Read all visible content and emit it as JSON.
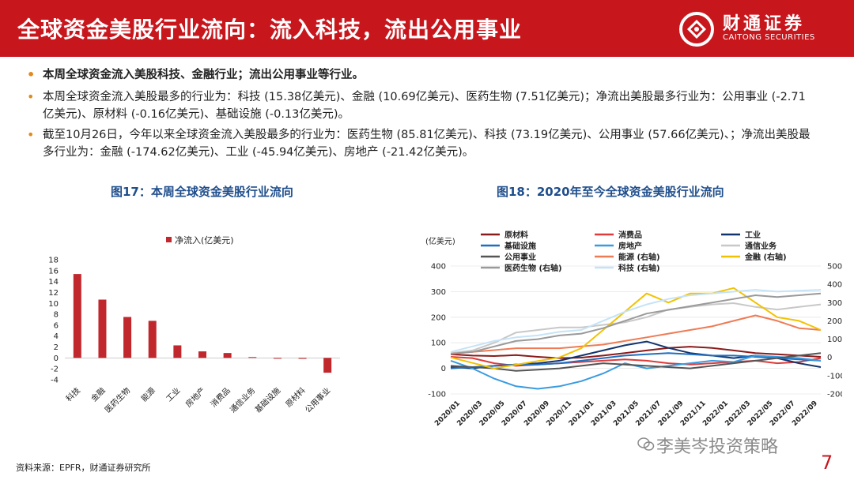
{
  "header": {
    "title": "全球资金美股行业流向：流入科技，流出公用事业",
    "logo_cn": "财通证券",
    "logo_en": "CAITONG SECURITIES"
  },
  "bullets": [
    "本周全球资金流入美股科技、金融行业；流出公用事业等行业。",
    "本周全球资金流入美股最多的行业为：科技 (15.38亿美元)、金融 (10.69亿美元)、医药生物 (7.51亿美元)；净流出美股最多行业为：公用事业 (-2.71亿美元)、原材料 (-0.16亿美元)、基础设施 (-0.13亿美元)。",
    "截至10月26日，今年以来全球资金流入美股最多的行业为：医药生物 (85.81亿美元)、科技 (73.19亿美元)、公用事业 (57.66亿美元)、；净流出美股最多行业为：金融 (-174.62亿美元)、工业 (-45.94亿美元)、房地产 (-21.42亿美元)。"
  ],
  "figures": {
    "fig17_title": "图17：本周全球资金美股行业流向",
    "fig18_title": "图18：2020年至今全球资金美股行业流向"
  },
  "chart_data": [
    {
      "type": "bar",
      "title": "图17：本周全球资金美股行业流向",
      "legend": "净流入(亿美元)",
      "categories": [
        "科技",
        "金融",
        "医药生物",
        "能源",
        "工业",
        "房地产",
        "消费品",
        "通信业务",
        "基础设施",
        "原材料",
        "公用事业"
      ],
      "values": [
        15.38,
        10.69,
        7.51,
        6.8,
        2.3,
        1.2,
        0.9,
        0.15,
        -0.13,
        -0.16,
        -2.71
      ],
      "ylim": [
        -4,
        18
      ],
      "yticks": [
        -4,
        -2,
        0,
        2,
        4,
        6,
        8,
        10,
        12,
        14,
        16,
        18
      ],
      "color": "#c0282d"
    },
    {
      "type": "line",
      "title": "图18：2020年至今全球资金美股行业流向",
      "ylabel": "(亿美元)",
      "ylim": [
        -100,
        400
      ],
      "yticks": [
        -100,
        0,
        100,
        200,
        300,
        400
      ],
      "y2lim": [
        -200,
        500
      ],
      "y2ticks": [
        -200,
        -100,
        0,
        100,
        200,
        300,
        400,
        500
      ],
      "xticks": [
        "2020/01",
        "2020/03",
        "2020/05",
        "2020/07",
        "2020/09",
        "2020/11",
        "2021/01",
        "2021/03",
        "2021/05",
        "2021/07",
        "2021/09",
        "2021/11",
        "2022/01",
        "2022/03",
        "2022/05",
        "2022/07",
        "2022/09"
      ],
      "series": [
        {
          "name": "原材料",
          "axis": "left",
          "color": "#8b1a1a",
          "values": [
            55,
            50,
            48,
            52,
            45,
            40,
            42,
            50,
            60,
            70,
            80,
            85,
            80,
            70,
            60,
            55,
            50,
            45
          ]
        },
        {
          "name": "消费品",
          "axis": "left",
          "color": "#e03a3a",
          "values": [
            45,
            40,
            20,
            10,
            15,
            20,
            25,
            30,
            35,
            30,
            20,
            15,
            20,
            25,
            30,
            20,
            25,
            40
          ]
        },
        {
          "name": "工业",
          "axis": "left",
          "color": "#12346e",
          "values": [
            5,
            0,
            10,
            15,
            20,
            30,
            50,
            70,
            90,
            105,
            80,
            60,
            50,
            40,
            50,
            40,
            20,
            5
          ]
        },
        {
          "name": "基础设施",
          "axis": "left",
          "color": "#1f6fc0",
          "values": [
            0,
            5,
            10,
            15,
            15,
            20,
            30,
            40,
            50,
            55,
            60,
            55,
            50,
            50,
            45,
            40,
            35,
            30
          ]
        },
        {
          "name": "房地产",
          "axis": "left",
          "color": "#3a9be0",
          "values": [
            30,
            0,
            -40,
            -70,
            -80,
            -70,
            -50,
            -20,
            20,
            0,
            10,
            20,
            30,
            25,
            50,
            45,
            40,
            30
          ]
        },
        {
          "name": "通信业务",
          "axis": "left",
          "color": "#c8c8c8",
          "values": [
            60,
            70,
            100,
            140,
            150,
            160,
            160,
            170,
            180,
            200,
            230,
            240,
            250,
            255,
            240,
            230,
            240,
            250
          ]
        },
        {
          "name": "公用事业",
          "axis": "left",
          "color": "#555555",
          "values": [
            10,
            5,
            0,
            -10,
            -5,
            0,
            10,
            20,
            15,
            10,
            5,
            0,
            10,
            20,
            30,
            40,
            50,
            60
          ]
        },
        {
          "name": "能源 (右轴)",
          "axis": "right",
          "color": "#ef7b55",
          "values": [
            20,
            30,
            40,
            50,
            50,
            50,
            60,
            70,
            90,
            110,
            130,
            150,
            170,
            200,
            230,
            200,
            160,
            150
          ]
        },
        {
          "name": "金融 (右轴)",
          "axis": "right",
          "color": "#f2c200",
          "values": [
            0,
            -30,
            -60,
            -40,
            -20,
            0,
            50,
            150,
            250,
            350,
            300,
            350,
            350,
            380,
            300,
            220,
            200,
            150
          ]
        },
        {
          "name": "医药生物 (右轴)",
          "axis": "right",
          "color": "#9a9a9a",
          "values": [
            20,
            30,
            60,
            90,
            100,
            120,
            130,
            160,
            200,
            240,
            260,
            280,
            300,
            320,
            340,
            330,
            340,
            350
          ]
        },
        {
          "name": "科技 (右轴)",
          "axis": "right",
          "color": "#c5e3f7",
          "values": [
            30,
            60,
            90,
            110,
            120,
            140,
            150,
            200,
            250,
            290,
            320,
            340,
            350,
            360,
            370,
            360,
            365,
            370
          ]
        }
      ]
    }
  ],
  "footer": {
    "source": "资料来源：EPFR，财通证券研究所",
    "watermark": "李美岑投资策略",
    "page": "7"
  }
}
